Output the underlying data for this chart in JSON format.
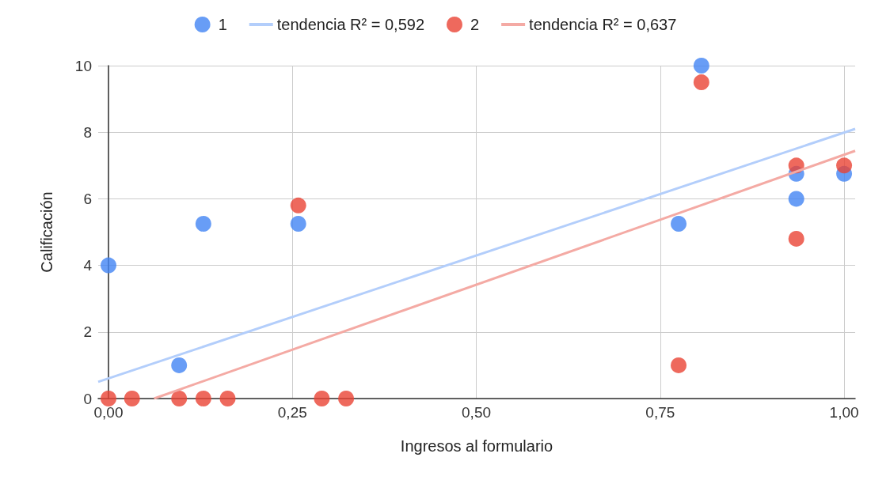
{
  "chart_data": {
    "type": "scatter",
    "xlabel": "Ingresos al formulario",
    "ylabel": "Calificación",
    "xlim": [
      -0.014,
      1.015
    ],
    "xticks": [
      {
        "value": 0,
        "label": "0,00"
      },
      {
        "value": 0.25,
        "label": "0,25"
      },
      {
        "value": 0.5,
        "label": "0,50"
      },
      {
        "value": 0.75,
        "label": "0,75"
      },
      {
        "value": 1,
        "label": "1,00"
      }
    ],
    "ylim": [
      0,
      10
    ],
    "yticks": [
      0,
      2,
      4,
      6,
      8,
      10
    ],
    "grid": true,
    "legend": "top",
    "series": [
      {
        "name": "1",
        "marker": "circle",
        "color": "#4285f4",
        "x": [
          0,
          0.096,
          0.129,
          0.258,
          0.775,
          0.806,
          0.935,
          0.935,
          1.0
        ],
        "values": [
          4,
          1,
          5.25,
          5.25,
          5.25,
          10,
          6.75,
          6,
          6.75
        ]
      },
      {
        "name": "tendencia R² = 0,592",
        "type": "line",
        "line_style": "solid",
        "marker": "none",
        "color": "#b3cefb",
        "x": [
          -0.014,
          1.015
        ],
        "values": [
          0.5,
          8.1
        ]
      },
      {
        "name": "2",
        "marker": "circle",
        "color": "#ea4335",
        "x": [
          0,
          0.032,
          0.096,
          0.129,
          0.162,
          0.258,
          0.29,
          0.323,
          0.775,
          0.806,
          0.935,
          0.935,
          1.0
        ],
        "values": [
          0,
          0,
          0,
          0,
          0,
          5.8,
          0,
          0,
          1,
          9.5,
          7,
          4.8,
          7
        ]
      },
      {
        "name": "tendencia R² = 0,637",
        "type": "line",
        "line_style": "solid",
        "marker": "none",
        "color": "#f4aaa4",
        "x": [
          0.062,
          1.015
        ],
        "values": [
          0,
          7.44
        ]
      }
    ]
  }
}
